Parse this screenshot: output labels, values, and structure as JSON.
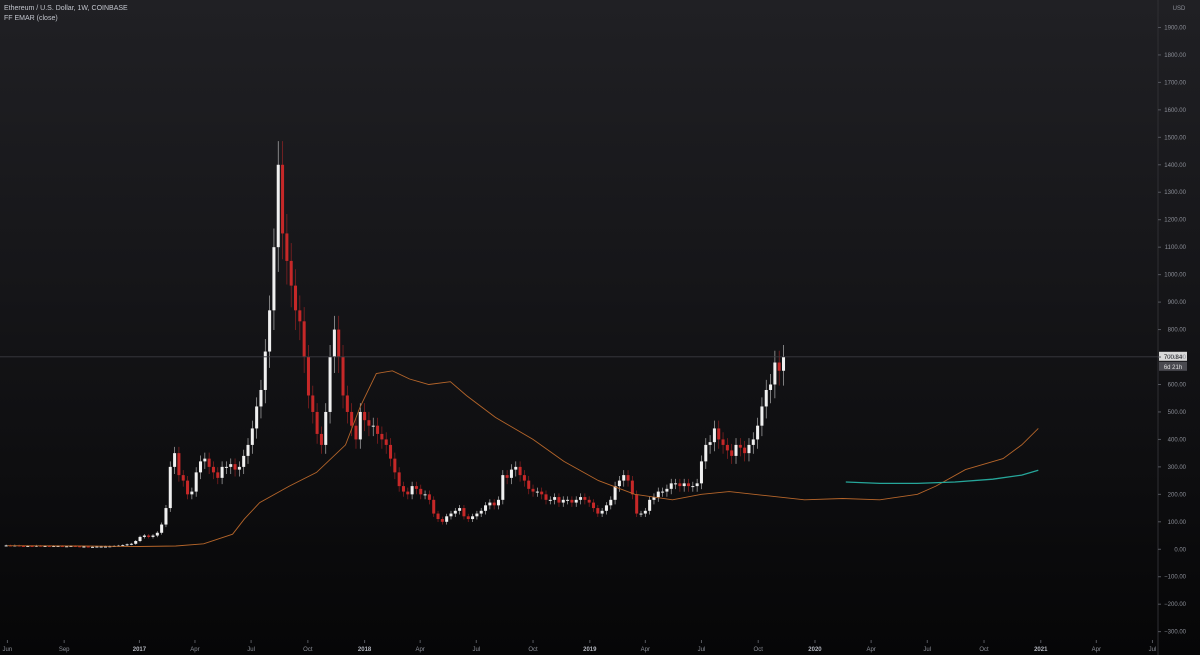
{
  "legend": {
    "symbol_line": "Ethereum / U.S. Dollar, 1W, COINBASE",
    "indicator_line": "FF EMAR (close)"
  },
  "colors": {
    "up_candle": "#f0f0f0",
    "down_candle": "#c62828",
    "ema_fast": "#b5652a",
    "ema_slow": "#26a69a",
    "grid": "#2a2a2e",
    "price_line": "#3a3a40",
    "price_tag_bg": "#d9d9d9",
    "countdown_bg": "#4a4a50"
  },
  "chart_data": {
    "type": "candlestick",
    "currency": "USD",
    "y_ticks": [
      1900,
      1800,
      1700,
      1600,
      1500,
      1400,
      1300,
      1200,
      1100,
      1000,
      900,
      800,
      700,
      600,
      500,
      400,
      300,
      200,
      100,
      0,
      -100,
      -200,
      -300
    ],
    "y_tick_labels": [
      "1900.00",
      "1800.00",
      "1700.00",
      "1600.00",
      "1500.00",
      "1400.00",
      "1300.00",
      "1200.00",
      "1100.00",
      "1000.00",
      "900.00",
      "800.00",
      "700.00",
      "600.00",
      "500.00",
      "400.00",
      "300.00",
      "200.00",
      "100.00",
      "0.00",
      "−100.00",
      "−200.00",
      "−300.00"
    ],
    "ylim": [
      -385,
      2000
    ],
    "x_range": [
      "2016-05-20",
      "2021-07-10"
    ],
    "x_ticks": [
      {
        "date": "2016-06-01",
        "label": "Jun"
      },
      {
        "date": "2016-09-01",
        "label": "Sep"
      },
      {
        "date": "2017-01-01",
        "label": "2017",
        "bold": true
      },
      {
        "date": "2017-04-01",
        "label": "Apr"
      },
      {
        "date": "2017-07-01",
        "label": "Jul"
      },
      {
        "date": "2017-10-01",
        "label": "Oct"
      },
      {
        "date": "2018-01-01",
        "label": "2018",
        "bold": true
      },
      {
        "date": "2018-04-01",
        "label": "Apr"
      },
      {
        "date": "2018-07-01",
        "label": "Jul"
      },
      {
        "date": "2018-10-01",
        "label": "Oct"
      },
      {
        "date": "2019-01-01",
        "label": "2019",
        "bold": true
      },
      {
        "date": "2019-04-01",
        "label": "Apr"
      },
      {
        "date": "2019-07-01",
        "label": "Jul"
      },
      {
        "date": "2019-10-01",
        "label": "Oct"
      },
      {
        "date": "2020-01-01",
        "label": "2020",
        "bold": true
      },
      {
        "date": "2020-04-01",
        "label": "Apr"
      },
      {
        "date": "2020-07-01",
        "label": "Jul"
      },
      {
        "date": "2020-10-01",
        "label": "Oct"
      },
      {
        "date": "2021-01-01",
        "label": "2021",
        "bold": true
      },
      {
        "date": "2021-04-01",
        "label": "Apr"
      },
      {
        "date": "2021-07-01",
        "label": "Jul"
      }
    ],
    "series_start": "2016-05-30",
    "candle_interval": "1W",
    "closes": [
      14,
      13,
      14,
      12,
      11,
      12,
      11,
      13,
      12,
      12,
      11,
      12,
      12,
      11,
      11,
      12,
      11,
      10,
      10,
      9,
      9,
      10,
      10,
      10,
      11,
      12,
      13,
      15,
      18,
      20,
      30,
      45,
      50,
      45,
      50,
      60,
      90,
      150,
      300,
      350,
      270,
      250,
      200,
      210,
      280,
      320,
      330,
      300,
      280,
      260,
      300,
      300,
      310,
      290,
      300,
      340,
      380,
      440,
      520,
      580,
      720,
      870,
      1100,
      1400,
      1150,
      1050,
      960,
      870,
      830,
      700,
      560,
      500,
      420,
      380,
      500,
      700,
      800,
      700,
      560,
      500,
      450,
      400,
      500,
      470,
      450,
      450,
      420,
      400,
      380,
      330,
      280,
      230,
      210,
      200,
      230,
      220,
      200,
      200,
      180,
      130,
      110,
      100,
      120,
      130,
      140,
      150,
      120,
      110,
      120,
      130,
      140,
      160,
      170,
      160,
      180,
      270,
      260,
      290,
      300,
      270,
      250,
      220,
      210,
      210,
      200,
      180,
      180,
      190,
      170,
      180,
      180,
      170,
      180,
      190,
      180,
      170,
      150,
      130,
      140,
      160,
      180,
      230,
      250,
      270,
      250,
      200,
      130,
      130,
      140,
      180,
      190,
      210,
      210,
      220,
      240,
      240,
      230,
      240,
      230,
      230,
      240,
      320,
      380,
      390,
      440,
      400,
      380,
      360,
      340,
      380,
      370,
      350,
      380,
      400,
      450,
      520,
      580,
      600,
      680,
      650,
      700
    ],
    "ema_fast": [
      [
        "2016-06-01",
        13
      ],
      [
        "2016-10-01",
        12
      ],
      [
        "2017-01-01",
        10
      ],
      [
        "2017-03-01",
        12
      ],
      [
        "2017-04-15",
        20
      ],
      [
        "2017-06-01",
        55
      ],
      [
        "2017-06-20",
        110
      ],
      [
        "2017-07-15",
        170
      ],
      [
        "2017-09-01",
        230
      ],
      [
        "2017-10-15",
        280
      ],
      [
        "2017-12-01",
        380
      ],
      [
        "2017-12-25",
        520
      ],
      [
        "2018-01-20",
        640
      ],
      [
        "2018-02-15",
        650
      ],
      [
        "2018-03-15",
        620
      ],
      [
        "2018-04-15",
        600
      ],
      [
        "2018-05-20",
        610
      ],
      [
        "2018-06-15",
        560
      ],
      [
        "2018-08-01",
        480
      ],
      [
        "2018-10-01",
        400
      ],
      [
        "2018-11-20",
        320
      ],
      [
        "2019-01-15",
        250
      ],
      [
        "2019-03-15",
        200
      ],
      [
        "2019-05-15",
        180
      ],
      [
        "2019-07-01",
        200
      ],
      [
        "2019-08-15",
        210
      ],
      [
        "2019-10-15",
        195
      ],
      [
        "2019-12-15",
        180
      ],
      [
        "2020-02-15",
        185
      ],
      [
        "2020-04-15",
        180
      ],
      [
        "2020-06-15",
        200
      ],
      [
        "2020-07-15",
        230
      ],
      [
        "2020-09-01",
        290
      ],
      [
        "2020-11-01",
        330
      ],
      [
        "2020-12-01",
        380
      ],
      [
        "2020-12-28",
        440
      ]
    ],
    "ema_slow": [
      [
        "2020-02-20",
        245
      ],
      [
        "2020-04-15",
        240
      ],
      [
        "2020-06-15",
        240
      ],
      [
        "2020-08-15",
        245
      ],
      [
        "2020-10-15",
        255
      ],
      [
        "2020-12-01",
        270
      ],
      [
        "2020-12-28",
        288
      ]
    ],
    "last_price": 700.84,
    "last_price_label": "700.84",
    "countdown_label": "6d 21h"
  }
}
